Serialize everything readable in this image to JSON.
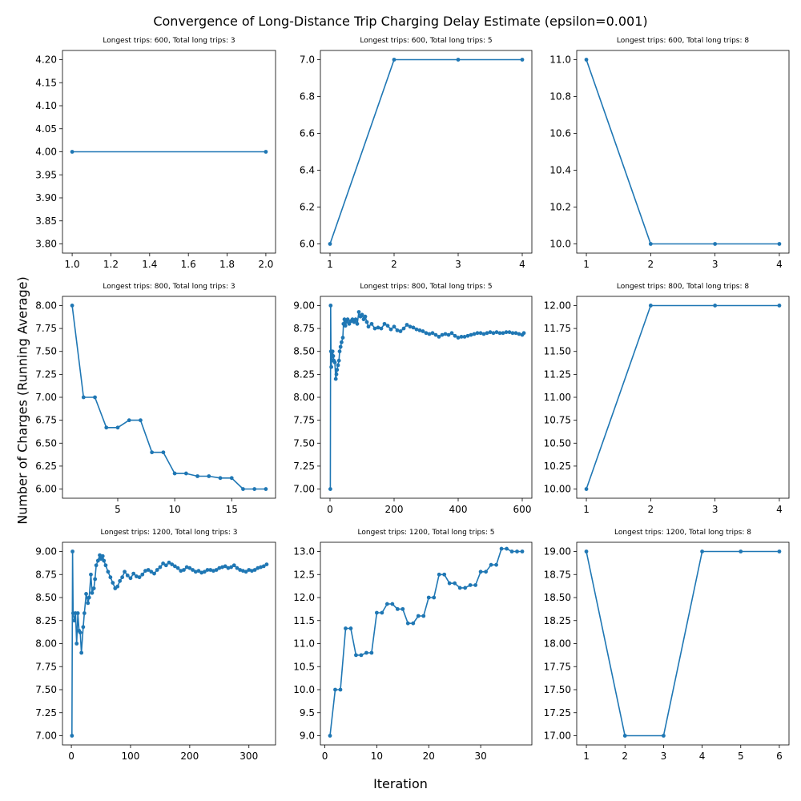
{
  "figure": {
    "title": "Convergence of Long-Distance Trip Charging Delay Estimate (epsilon=0.001)",
    "xlabel": "Iteration",
    "ylabel": "Number of Charges (Running Average)",
    "line_color": "#1f77b4"
  },
  "chart_data": [
    {
      "type": "line",
      "title": "Longest trips: 600, Total long trips: 3",
      "x": [
        1,
        2
      ],
      "y": [
        4.0,
        4.0
      ],
      "xlim": [
        0.95,
        2.05
      ],
      "ylim": [
        3.78,
        4.22
      ],
      "xticks": [
        1.0,
        1.2,
        1.4,
        1.6,
        1.8,
        2.0
      ],
      "xtick_labels": [
        "1.0",
        "1.2",
        "1.4",
        "1.6",
        "1.8",
        "2.0"
      ],
      "yticks": [
        3.8,
        3.85,
        3.9,
        3.95,
        4.0,
        4.05,
        4.1,
        4.15,
        4.2
      ],
      "ytick_labels": [
        "3.80",
        "3.85",
        "3.90",
        "3.95",
        "4.00",
        "4.05",
        "4.10",
        "4.15",
        "4.20"
      ]
    },
    {
      "type": "line",
      "title": "Longest trips: 600, Total long trips: 5",
      "x": [
        1,
        2,
        3,
        4
      ],
      "y": [
        6.0,
        7.0,
        7.0,
        7.0
      ],
      "xlim": [
        0.85,
        4.15
      ],
      "ylim": [
        5.95,
        7.05
      ],
      "xticks": [
        1,
        2,
        3,
        4
      ],
      "xtick_labels": [
        "1",
        "2",
        "3",
        "4"
      ],
      "yticks": [
        6.0,
        6.2,
        6.4,
        6.6,
        6.8,
        7.0
      ],
      "ytick_labels": [
        "6.0",
        "6.2",
        "6.4",
        "6.6",
        "6.8",
        "7.0"
      ]
    },
    {
      "type": "line",
      "title": "Longest trips: 600, Total long trips: 8",
      "x": [
        1,
        2,
        3,
        4
      ],
      "y": [
        11.0,
        10.0,
        10.0,
        10.0
      ],
      "xlim": [
        0.85,
        4.15
      ],
      "ylim": [
        9.95,
        11.05
      ],
      "xticks": [
        1,
        2,
        3,
        4
      ],
      "xtick_labels": [
        "1",
        "2",
        "3",
        "4"
      ],
      "yticks": [
        10.0,
        10.2,
        10.4,
        10.6,
        10.8,
        11.0
      ],
      "ytick_labels": [
        "10.0",
        "10.2",
        "10.4",
        "10.6",
        "10.8",
        "11.0"
      ]
    },
    {
      "type": "line",
      "title": "Longest trips: 800, Total long trips: 3",
      "x": [
        1,
        2,
        3,
        4,
        5,
        6,
        7,
        8,
        9,
        10,
        11,
        12,
        13,
        14,
        15,
        16,
        17,
        18
      ],
      "y": [
        8.0,
        7.0,
        7.0,
        6.67,
        6.67,
        6.75,
        6.75,
        6.4,
        6.4,
        6.17,
        6.17,
        6.14,
        6.14,
        6.12,
        6.12,
        6.0,
        6.0,
        6.0
      ],
      "xlim": [
        0.15,
        18.85
      ],
      "ylim": [
        5.9,
        8.1
      ],
      "xticks": [
        5,
        10,
        15
      ],
      "xtick_labels": [
        "5",
        "10",
        "15"
      ],
      "yticks": [
        6.0,
        6.25,
        6.5,
        6.75,
        7.0,
        7.25,
        7.5,
        7.75,
        8.0
      ],
      "ytick_labels": [
        "6.00",
        "6.25",
        "6.50",
        "6.75",
        "7.00",
        "7.25",
        "7.50",
        "7.75",
        "8.00"
      ]
    },
    {
      "type": "line",
      "title": "Longest trips: 800, Total long trips: 5",
      "x": [
        1,
        2,
        3,
        4,
        5,
        6,
        8,
        10,
        12,
        15,
        18,
        20,
        22,
        25,
        28,
        30,
        33,
        36,
        40,
        42,
        45,
        48,
        50,
        55,
        60,
        65,
        70,
        75,
        80,
        85,
        90,
        95,
        100,
        105,
        110,
        115,
        120,
        130,
        140,
        150,
        160,
        170,
        180,
        190,
        200,
        210,
        220,
        230,
        240,
        250,
        260,
        270,
        280,
        290,
        300,
        310,
        320,
        330,
        340,
        350,
        360,
        370,
        380,
        390,
        400,
        410,
        420,
        430,
        440,
        450,
        460,
        470,
        480,
        490,
        500,
        510,
        520,
        530,
        540,
        550,
        560,
        570,
        580,
        590,
        600,
        605
      ],
      "y": [
        7.0,
        9.0,
        8.5,
        8.33,
        8.5,
        8.4,
        8.5,
        8.45,
        8.4,
        8.38,
        8.2,
        8.25,
        8.3,
        8.35,
        8.4,
        8.5,
        8.55,
        8.6,
        8.65,
        8.8,
        8.85,
        8.78,
        8.82,
        8.85,
        8.8,
        8.83,
        8.85,
        8.82,
        8.85,
        8.8,
        8.93,
        8.88,
        8.9,
        8.85,
        8.88,
        8.82,
        8.77,
        8.8,
        8.75,
        8.76,
        8.75,
        8.8,
        8.78,
        8.74,
        8.77,
        8.73,
        8.72,
        8.75,
        8.79,
        8.77,
        8.76,
        8.74,
        8.73,
        8.72,
        8.7,
        8.69,
        8.7,
        8.68,
        8.66,
        8.68,
        8.69,
        8.68,
        8.7,
        8.67,
        8.65,
        8.66,
        8.66,
        8.67,
        8.68,
        8.69,
        8.7,
        8.7,
        8.69,
        8.7,
        8.71,
        8.7,
        8.71,
        8.7,
        8.7,
        8.71,
        8.71,
        8.7,
        8.7,
        8.69,
        8.68,
        8.7
      ],
      "xlim": [
        -30,
        630
      ],
      "ylim": [
        6.9,
        9.1
      ],
      "xticks": [
        0,
        200,
        400,
        600
      ],
      "xtick_labels": [
        "0",
        "200",
        "400",
        "600"
      ],
      "yticks": [
        7.0,
        7.25,
        7.5,
        7.75,
        8.0,
        8.25,
        8.5,
        8.75,
        9.0
      ],
      "ytick_labels": [
        "7.00",
        "7.25",
        "7.50",
        "7.75",
        "8.00",
        "8.25",
        "8.50",
        "8.75",
        "9.00"
      ]
    },
    {
      "type": "line",
      "title": "Longest trips: 800, Total long trips: 8",
      "x": [
        1,
        2,
        3,
        4
      ],
      "y": [
        10.0,
        12.0,
        12.0,
        12.0
      ],
      "xlim": [
        0.85,
        4.15
      ],
      "ylim": [
        9.9,
        12.1
      ],
      "xticks": [
        1,
        2,
        3,
        4
      ],
      "xtick_labels": [
        "1",
        "2",
        "3",
        "4"
      ],
      "yticks": [
        10.0,
        10.25,
        10.5,
        10.75,
        11.0,
        11.25,
        11.5,
        11.75,
        12.0
      ],
      "ytick_labels": [
        "10.00",
        "10.25",
        "10.50",
        "10.75",
        "11.00",
        "11.25",
        "11.50",
        "11.75",
        "12.00"
      ]
    },
    {
      "type": "line",
      "title": "Longest trips: 1200, Total long trips: 3",
      "x": [
        1,
        2,
        3,
        5,
        7,
        9,
        11,
        13,
        15,
        17,
        20,
        22,
        25,
        28,
        30,
        33,
        35,
        38,
        40,
        42,
        45,
        48,
        50,
        53,
        55,
        58,
        62,
        66,
        70,
        74,
        78,
        82,
        86,
        90,
        95,
        100,
        105,
        110,
        115,
        120,
        125,
        130,
        135,
        140,
        145,
        150,
        155,
        160,
        165,
        170,
        175,
        180,
        185,
        190,
        195,
        200,
        205,
        210,
        215,
        220,
        225,
        230,
        235,
        240,
        245,
        250,
        255,
        260,
        265,
        270,
        275,
        280,
        285,
        290,
        295,
        300,
        305,
        310,
        315,
        320,
        325,
        330
      ],
      "y": [
        7.0,
        9.0,
        8.33,
        8.25,
        8.33,
        8.0,
        8.33,
        8.14,
        8.12,
        7.9,
        8.18,
        8.33,
        8.54,
        8.44,
        8.5,
        8.75,
        8.55,
        8.6,
        8.7,
        8.85,
        8.9,
        8.96,
        8.92,
        8.95,
        8.9,
        8.85,
        8.78,
        8.72,
        8.66,
        8.6,
        8.62,
        8.68,
        8.72,
        8.78,
        8.74,
        8.71,
        8.76,
        8.73,
        8.72,
        8.75,
        8.79,
        8.8,
        8.78,
        8.76,
        8.8,
        8.83,
        8.87,
        8.85,
        8.88,
        8.86,
        8.84,
        8.82,
        8.79,
        8.8,
        8.83,
        8.82,
        8.8,
        8.78,
        8.79,
        8.77,
        8.78,
        8.8,
        8.8,
        8.79,
        8.8,
        8.82,
        8.83,
        8.84,
        8.82,
        8.83,
        8.85,
        8.82,
        8.8,
        8.79,
        8.78,
        8.8,
        8.79,
        8.8,
        8.82,
        8.83,
        8.84,
        8.86
      ],
      "xlim": [
        -15,
        345
      ],
      "ylim": [
        6.9,
        9.1
      ],
      "xticks": [
        0,
        100,
        200,
        300
      ],
      "xtick_labels": [
        "0",
        "100",
        "200",
        "300"
      ],
      "yticks": [
        7.0,
        7.25,
        7.5,
        7.75,
        8.0,
        8.25,
        8.5,
        8.75,
        9.0
      ],
      "ytick_labels": [
        "7.00",
        "7.25",
        "7.50",
        "7.75",
        "8.00",
        "8.25",
        "8.50",
        "8.75",
        "9.00"
      ]
    },
    {
      "type": "line",
      "title": "Longest trips: 1200, Total long trips: 5",
      "x": [
        1,
        2,
        3,
        4,
        5,
        6,
        7,
        8,
        9,
        10,
        11,
        12,
        13,
        14,
        15,
        16,
        17,
        18,
        19,
        20,
        21,
        22,
        23,
        24,
        25,
        26,
        27,
        28,
        29,
        30,
        31,
        32,
        33,
        34,
        35,
        36,
        37,
        38
      ],
      "y": [
        9.0,
        10.0,
        10.0,
        11.33,
        11.33,
        10.75,
        10.75,
        10.8,
        10.8,
        11.67,
        11.67,
        11.86,
        11.86,
        11.75,
        11.75,
        11.44,
        11.44,
        11.6,
        11.6,
        12.0,
        12.0,
        12.5,
        12.5,
        12.31,
        12.31,
        12.21,
        12.21,
        12.27,
        12.27,
        12.56,
        12.56,
        12.71,
        12.71,
        13.06,
        13.06,
        13.0,
        13.0,
        13.0
      ],
      "xlim": [
        -0.85,
        39.85
      ],
      "ylim": [
        8.8,
        13.2
      ],
      "xticks": [
        0,
        10,
        20,
        30
      ],
      "xtick_labels": [
        "0",
        "10",
        "20",
        "30"
      ],
      "yticks": [
        9.0,
        9.5,
        10.0,
        10.5,
        11.0,
        11.5,
        12.0,
        12.5,
        13.0
      ],
      "ytick_labels": [
        "9.0",
        "9.5",
        "10.0",
        "10.5",
        "11.0",
        "11.5",
        "12.0",
        "12.5",
        "13.0"
      ]
    },
    {
      "type": "line",
      "title": "Longest trips: 1200, Total long trips: 8",
      "x": [
        1,
        2,
        3,
        4,
        5,
        6
      ],
      "y": [
        19.0,
        17.0,
        17.0,
        19.0,
        19.0,
        19.0
      ],
      "xlim": [
        0.75,
        6.25
      ],
      "ylim": [
        16.9,
        19.1
      ],
      "xticks": [
        1,
        2,
        3,
        4,
        5,
        6
      ],
      "xtick_labels": [
        "1",
        "2",
        "3",
        "4",
        "5",
        "6"
      ],
      "yticks": [
        17.0,
        17.25,
        17.5,
        17.75,
        18.0,
        18.25,
        18.5,
        18.75,
        19.0
      ],
      "ytick_labels": [
        "17.00",
        "17.25",
        "17.50",
        "17.75",
        "18.00",
        "18.25",
        "18.50",
        "18.75",
        "19.00"
      ]
    }
  ]
}
